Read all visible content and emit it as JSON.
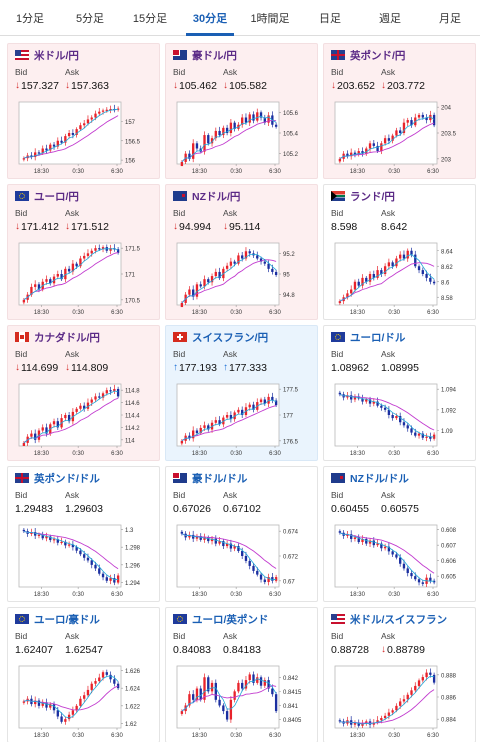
{
  "tabs": [
    {
      "label": "1分足",
      "active": false
    },
    {
      "label": "5分足",
      "active": false
    },
    {
      "label": "15分足",
      "active": false
    },
    {
      "label": "30分足",
      "active": true
    },
    {
      "label": "1時間足",
      "active": false
    },
    {
      "label": "日足",
      "active": false
    },
    {
      "label": "週足",
      "active": false
    },
    {
      "label": "月足",
      "active": false
    }
  ],
  "labels": {
    "bid": "Bid",
    "ask": "Ask"
  },
  "colors": {
    "bull": "#e8232b",
    "bear": "#1b2fa0",
    "ma_short": "#20a8d8",
    "ma_long": "#c23ccf",
    "down_bg": "#fdeff0",
    "up_bg": "#eaf4fd"
  },
  "pairs": [
    {
      "name": "米ドル/円",
      "flag": "us-jp",
      "state": "down",
      "bid": "157.327",
      "ask": "157.363",
      "bid_dir": "down",
      "ask_dir": "down",
      "chart_data": {
        "type": "candlestick",
        "y_ticks": [
          "157",
          "156.5",
          "156"
        ],
        "x_ticks": [
          "18:30",
          "0:30",
          "6:30"
        ],
        "ylim": [
          155.9,
          157.5
        ],
        "closes": [
          156.05,
          156.12,
          156.08,
          156.2,
          156.18,
          156.3,
          156.25,
          156.4,
          156.35,
          156.5,
          156.45,
          156.62,
          156.7,
          156.65,
          156.8,
          156.9,
          156.95,
          157.05,
          157.1,
          157.2,
          157.25,
          157.28,
          157.3,
          157.32,
          157.3,
          157.33
        ]
      }
    },
    {
      "name": "豪ドル/円",
      "flag": "au-jp",
      "state": "down",
      "bid": "105.462",
      "ask": "105.582",
      "bid_dir": "down",
      "ask_dir": "down",
      "chart_data": {
        "type": "candlestick",
        "y_ticks": [
          "105.6",
          "105.4",
          "105.2"
        ],
        "x_ticks": [
          "18:30",
          "0:30",
          "6:30"
        ],
        "ylim": [
          105.1,
          105.7
        ],
        "closes": [
          105.12,
          105.2,
          105.15,
          105.3,
          105.25,
          105.22,
          105.38,
          105.3,
          105.35,
          105.42,
          105.38,
          105.45,
          105.4,
          105.5,
          105.44,
          105.48,
          105.55,
          105.5,
          105.58,
          105.52,
          105.6,
          105.55,
          105.5,
          105.57,
          105.48,
          105.46
        ]
      }
    },
    {
      "name": "英ポンド/円",
      "flag": "gb-jp",
      "state": "down",
      "bid": "203.652",
      "ask": "203.772",
      "bid_dir": "down",
      "ask_dir": "down",
      "chart_data": {
        "type": "candlestick",
        "y_ticks": [
          "204",
          "203.5",
          "203"
        ],
        "x_ticks": [
          "18:30",
          "0:30",
          "6:30"
        ],
        "ylim": [
          202.9,
          204.1
        ],
        "closes": [
          203.0,
          203.1,
          203.05,
          203.12,
          203.08,
          203.15,
          203.1,
          203.2,
          203.3,
          203.25,
          203.15,
          203.3,
          203.4,
          203.35,
          203.45,
          203.55,
          203.5,
          203.7,
          203.75,
          203.65,
          203.8,
          203.85,
          203.8,
          203.75,
          203.85,
          203.65
        ]
      }
    },
    {
      "name": "ユーロ/円",
      "flag": "eu-jp",
      "state": "down",
      "bid": "171.412",
      "ask": "171.512",
      "bid_dir": "down",
      "ask_dir": "down",
      "chart_data": {
        "type": "candlestick",
        "y_ticks": [
          "171.5",
          "171",
          "170.5"
        ],
        "x_ticks": [
          "18:30",
          "0:30",
          "6:30"
        ],
        "ylim": [
          170.4,
          171.6
        ],
        "closes": [
          170.5,
          170.6,
          170.75,
          170.8,
          170.7,
          170.85,
          170.9,
          170.82,
          170.95,
          171.0,
          170.9,
          171.1,
          171.05,
          171.2,
          171.15,
          171.3,
          171.35,
          171.4,
          171.45,
          171.5,
          171.48,
          171.52,
          171.45,
          171.5,
          171.48,
          171.41
        ]
      }
    },
    {
      "name": "NZドル/円",
      "flag": "nz-jp",
      "state": "down",
      "bid": "94.994",
      "ask": "95.114",
      "bid_dir": "down",
      "ask_dir": "down",
      "chart_data": {
        "type": "candlestick",
        "y_ticks": [
          "95.2",
          "95",
          "94.8"
        ],
        "x_ticks": [
          "18:30",
          "0:30",
          "6:30"
        ],
        "ylim": [
          94.7,
          95.3
        ],
        "closes": [
          94.72,
          94.8,
          94.85,
          94.78,
          94.9,
          94.88,
          94.95,
          94.92,
          94.98,
          95.02,
          94.96,
          95.05,
          95.08,
          95.12,
          95.1,
          95.18,
          95.15,
          95.22,
          95.2,
          95.18,
          95.15,
          95.12,
          95.1,
          95.05,
          95.02,
          94.99
        ]
      }
    },
    {
      "name": "ランド/円",
      "flag": "za-jp",
      "state": "neutral",
      "bid": "8.598",
      "ask": "8.642",
      "bid_dir": "none",
      "ask_dir": "none",
      "chart_data": {
        "type": "candlestick",
        "y_ticks": [
          "8.64",
          "8.62",
          "8.6",
          "8.58"
        ],
        "x_ticks": [
          "18:30",
          "0:30",
          "6:30"
        ],
        "ylim": [
          8.57,
          8.65
        ],
        "closes": [
          8.575,
          8.58,
          8.585,
          8.59,
          8.6,
          8.595,
          8.605,
          8.6,
          8.61,
          8.605,
          8.615,
          8.61,
          8.62,
          8.625,
          8.62,
          8.63,
          8.635,
          8.63,
          8.64,
          8.635,
          8.62,
          8.615,
          8.61,
          8.605,
          8.6,
          8.598
        ]
      }
    },
    {
      "name": "カナダドル/円",
      "flag": "ca-jp",
      "state": "down",
      "bid": "114.699",
      "ask": "114.809",
      "bid_dir": "down",
      "ask_dir": "down",
      "chart_data": {
        "type": "candlestick",
        "y_ticks": [
          "114.8",
          "114.6",
          "114.4",
          "114.2",
          "114"
        ],
        "x_ticks": [
          "18:30",
          "0:30",
          "6:30"
        ],
        "ylim": [
          113.9,
          114.9
        ],
        "closes": [
          113.95,
          114.05,
          114.1,
          114.0,
          114.15,
          114.2,
          114.1,
          114.25,
          114.3,
          114.2,
          114.35,
          114.4,
          114.3,
          114.45,
          114.5,
          114.55,
          114.5,
          114.6,
          114.65,
          114.7,
          114.68,
          114.75,
          114.8,
          114.78,
          114.82,
          114.7
        ]
      }
    },
    {
      "name": "スイスフラン/円",
      "flag": "ch-jp",
      "state": "up",
      "bid": "177.193",
      "ask": "177.333",
      "bid_dir": "up",
      "ask_dir": "up",
      "chart_data": {
        "type": "candlestick",
        "y_ticks": [
          "177.5",
          "177",
          "176.5"
        ],
        "x_ticks": [
          "18:30",
          "0:30",
          "6:30"
        ],
        "ylim": [
          176.4,
          177.6
        ],
        "closes": [
          176.5,
          176.6,
          176.55,
          176.7,
          176.65,
          176.75,
          176.8,
          176.72,
          176.85,
          176.9,
          176.82,
          176.95,
          177.0,
          176.92,
          177.05,
          177.1,
          177.0,
          177.15,
          177.2,
          177.1,
          177.25,
          177.3,
          177.22,
          177.35,
          177.28,
          177.19
        ]
      }
    },
    {
      "name": "ユーロ/ドル",
      "flag": "eu-us",
      "state": "neutral",
      "bid": "1.08962",
      "ask": "1.08995",
      "bid_dir": "none",
      "ask_dir": "none",
      "chart_data": {
        "type": "candlestick",
        "y_ticks": [
          "1.094",
          "1.092",
          "1.09"
        ],
        "x_ticks": [
          "18:30",
          "0:30",
          "6:30"
        ],
        "ylim": [
          1.0885,
          1.0945
        ],
        "closes": [
          1.0935,
          1.0932,
          1.0934,
          1.093,
          1.0933,
          1.0931,
          1.0928,
          1.093,
          1.0926,
          1.0928,
          1.0924,
          1.0922,
          1.092,
          1.0915,
          1.0912,
          1.0914,
          1.0908,
          1.0905,
          1.0902,
          1.0898,
          1.0895,
          1.0897,
          1.0893,
          1.0894,
          1.0892,
          1.0896
        ]
      }
    },
    {
      "name": "英ポンド/ドル",
      "flag": "gb-us",
      "state": "neutral",
      "bid": "1.29483",
      "ask": "1.29603",
      "bid_dir": "none",
      "ask_dir": "none",
      "chart_data": {
        "type": "candlestick",
        "y_ticks": [
          "1.3",
          "1.298",
          "1.296",
          "1.294"
        ],
        "x_ticks": [
          "18:30",
          "0:30",
          "6:30"
        ],
        "ylim": [
          1.2935,
          1.3005
        ],
        "closes": [
          1.2998,
          1.2995,
          1.2997,
          1.2993,
          1.2994,
          1.299,
          1.2992,
          1.2988,
          1.2989,
          1.2985,
          1.2986,
          1.2982,
          1.2983,
          1.298,
          1.2976,
          1.2972,
          1.2968,
          1.2965,
          1.296,
          1.2956,
          1.295,
          1.2946,
          1.2942,
          1.2945,
          1.294,
          1.2948
        ]
      }
    },
    {
      "name": "豪ドル/ドル",
      "flag": "au-us",
      "state": "neutral",
      "bid": "0.67026",
      "ask": "0.67102",
      "bid_dir": "none",
      "ask_dir": "none",
      "chart_data": {
        "type": "candlestick",
        "y_ticks": [
          "0.674",
          "0.672",
          "0.67"
        ],
        "x_ticks": [
          "18:30",
          "0:30",
          "6:30"
        ],
        "ylim": [
          0.6695,
          0.6745
        ],
        "closes": [
          0.6738,
          0.6735,
          0.6737,
          0.6734,
          0.6736,
          0.6733,
          0.6735,
          0.6732,
          0.6734,
          0.673,
          0.6732,
          0.6728,
          0.673,
          0.6726,
          0.6728,
          0.6724,
          0.672,
          0.6716,
          0.6712,
          0.6708,
          0.6705,
          0.6701,
          0.6699,
          0.6703,
          0.67,
          0.6703
        ]
      }
    },
    {
      "name": "NZドル/ドル",
      "flag": "nz-us",
      "state": "neutral",
      "bid": "0.60455",
      "ask": "0.60575",
      "bid_dir": "none",
      "ask_dir": "none",
      "chart_data": {
        "type": "candlestick",
        "y_ticks": [
          "0.608",
          "0.607",
          "0.606",
          "0.605"
        ],
        "x_ticks": [
          "18:30",
          "0:30",
          "6:30"
        ],
        "ylim": [
          0.6043,
          0.6083
        ],
        "closes": [
          0.6078,
          0.6076,
          0.6077,
          0.6074,
          0.6075,
          0.6072,
          0.6074,
          0.6071,
          0.6073,
          0.607,
          0.6071,
          0.6068,
          0.6069,
          0.6066,
          0.6064,
          0.6062,
          0.6058,
          0.6055,
          0.6052,
          0.605,
          0.6048,
          0.6046,
          0.6045,
          0.6049,
          0.6047,
          0.6046
        ]
      }
    },
    {
      "name": "ユーロ/豪ドル",
      "flag": "eu-au",
      "state": "neutral",
      "bid": "1.62407",
      "ask": "1.62547",
      "bid_dir": "none",
      "ask_dir": "none",
      "chart_data": {
        "type": "candlestick",
        "y_ticks": [
          "1.626",
          "1.624",
          "1.622",
          "1.62"
        ],
        "x_ticks": [
          "18:30",
          "0:30",
          "6:30"
        ],
        "ylim": [
          1.6195,
          1.6265
        ],
        "closes": [
          1.6225,
          1.6228,
          1.6222,
          1.6226,
          1.622,
          1.6224,
          1.6218,
          1.6222,
          1.6215,
          1.6208,
          1.6202,
          1.6205,
          1.621,
          1.6215,
          1.622,
          1.6228,
          1.6232,
          1.6238,
          1.6245,
          1.6248,
          1.6252,
          1.6258,
          1.6255,
          1.625,
          1.6245,
          1.624
        ]
      }
    },
    {
      "name": "ユーロ/英ポンド",
      "flag": "eu-gb",
      "state": "neutral",
      "bid": "0.84083",
      "ask": "0.84183",
      "bid_dir": "none",
      "ask_dir": "none",
      "chart_data": {
        "type": "candlestick",
        "y_ticks": [
          "0.842",
          "0.8415",
          "0.841",
          "0.8405"
        ],
        "x_ticks": [
          "18:30",
          "0:30",
          "6:30"
        ],
        "ylim": [
          0.8402,
          0.8424
        ],
        "closes": [
          0.8408,
          0.841,
          0.8414,
          0.8412,
          0.8416,
          0.8412,
          0.842,
          0.8415,
          0.8418,
          0.8412,
          0.841,
          0.8408,
          0.8405,
          0.8412,
          0.8415,
          0.8418,
          0.8416,
          0.8419,
          0.8421,
          0.8418,
          0.842,
          0.8417,
          0.8419,
          0.8416,
          0.8414,
          0.8408
        ]
      }
    },
    {
      "name": "米ドル/スイスフラン",
      "flag": "us-ch",
      "state": "neutral",
      "bid": "0.88728",
      "ask": "0.88789",
      "bid_dir": "none",
      "ask_dir": "down",
      "chart_data": {
        "type": "candlestick",
        "y_ticks": [
          "0.888",
          "0.886",
          "0.884"
        ],
        "x_ticks": [
          "18:30",
          "0:30",
          "6:30"
        ],
        "ylim": [
          0.8832,
          0.8888
        ],
        "closes": [
          0.8838,
          0.8836,
          0.8839,
          0.8835,
          0.8837,
          0.8834,
          0.8836,
          0.8838,
          0.8835,
          0.8837,
          0.8839,
          0.8841,
          0.8843,
          0.8846,
          0.8848,
          0.8852,
          0.8856,
          0.8858,
          0.8862,
          0.8866,
          0.887,
          0.8875,
          0.8878,
          0.8882,
          0.888,
          0.8873
        ]
      }
    }
  ]
}
